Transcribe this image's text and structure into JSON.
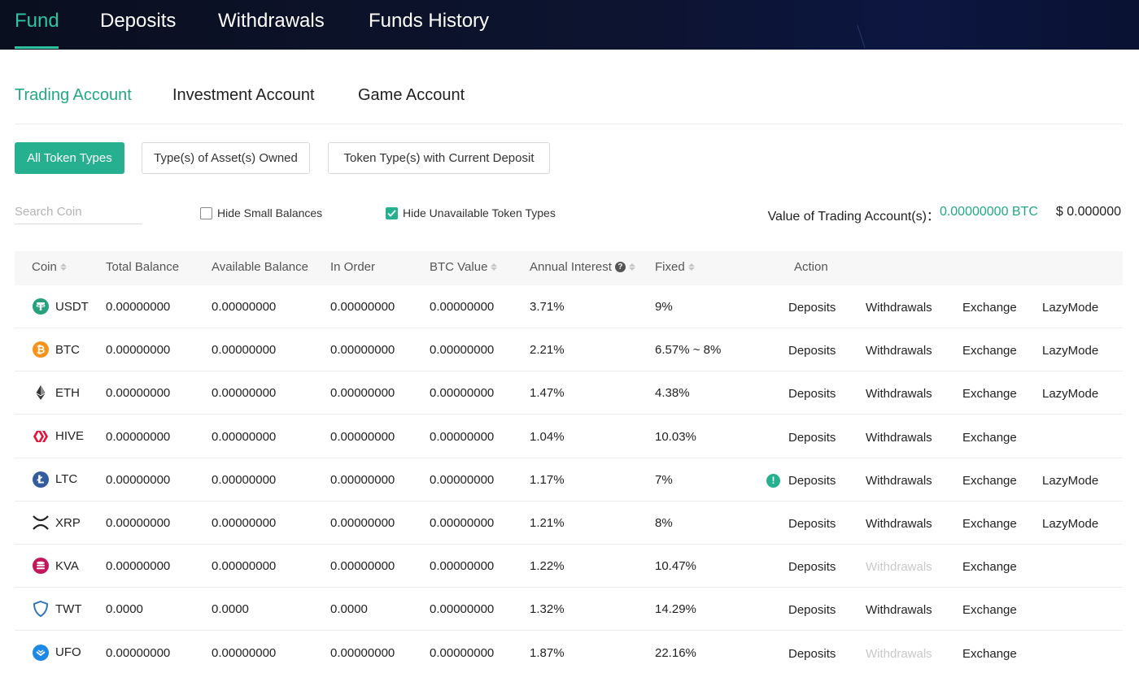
{
  "topnav": {
    "items": [
      {
        "label": "Fund",
        "active": true
      },
      {
        "label": "Deposits",
        "active": false
      },
      {
        "label": "Withdrawals",
        "active": false
      },
      {
        "label": "Funds History",
        "active": false
      }
    ]
  },
  "account_tabs": [
    {
      "label": "Trading Account",
      "active": true
    },
    {
      "label": "Investment Account",
      "active": false
    },
    {
      "label": "Game Account",
      "active": false
    }
  ],
  "filters": [
    {
      "label": "All Token Types",
      "selected": true
    },
    {
      "label": "Type(s) of Asset(s) Owned",
      "selected": false
    },
    {
      "label": "Token Type(s) with Current Deposit",
      "selected": false
    }
  ],
  "search": {
    "placeholder": "Search Coin",
    "value": ""
  },
  "checks": {
    "hide_small": {
      "label": "Hide Small Balances",
      "checked": false
    },
    "hide_unavailable": {
      "label": "Hide Unavailable Token Types",
      "checked": true
    }
  },
  "account_value": {
    "label": "Value of Trading Account(s)：",
    "btc": "0.00000000 BTC",
    "usd": "$ 0.000000"
  },
  "table": {
    "headers": {
      "coin": "Coin",
      "total": "Total Balance",
      "available": "Available Balance",
      "in_order": "In Order",
      "btc_value": "BTC Value",
      "interest": "Annual Interest",
      "fixed": "Fixed",
      "action": "Action"
    },
    "actions": {
      "deposits": "Deposits",
      "withdrawals": "Withdrawals",
      "exchange": "Exchange",
      "lazymode": "LazyMode"
    },
    "rows": [
      {
        "coin": "USDT",
        "icon": "usdt-icon",
        "total": "0.00000000",
        "available": "0.00000000",
        "in_order": "0.00000000",
        "btc_value": "0.00000000",
        "interest": "3.71%",
        "fixed": "9%",
        "warning": false,
        "withdraw_enabled": true,
        "lazymode": true
      },
      {
        "coin": "BTC",
        "icon": "btc-icon",
        "total": "0.00000000",
        "available": "0.00000000",
        "in_order": "0.00000000",
        "btc_value": "0.00000000",
        "interest": "2.21%",
        "fixed": "6.57% ~ 8%",
        "warning": false,
        "withdraw_enabled": true,
        "lazymode": true
      },
      {
        "coin": "ETH",
        "icon": "eth-icon",
        "total": "0.00000000",
        "available": "0.00000000",
        "in_order": "0.00000000",
        "btc_value": "0.00000000",
        "interest": "1.47%",
        "fixed": "4.38%",
        "warning": false,
        "withdraw_enabled": true,
        "lazymode": true
      },
      {
        "coin": "HIVE",
        "icon": "hive-icon",
        "total": "0.00000000",
        "available": "0.00000000",
        "in_order": "0.00000000",
        "btc_value": "0.00000000",
        "interest": "1.04%",
        "fixed": "10.03%",
        "warning": false,
        "withdraw_enabled": true,
        "lazymode": false
      },
      {
        "coin": "LTC",
        "icon": "ltc-icon",
        "total": "0.00000000",
        "available": "0.00000000",
        "in_order": "0.00000000",
        "btc_value": "0.00000000",
        "interest": "1.17%",
        "fixed": "7%",
        "warning": true,
        "withdraw_enabled": true,
        "lazymode": true
      },
      {
        "coin": "XRP",
        "icon": "xrp-icon",
        "total": "0.00000000",
        "available": "0.00000000",
        "in_order": "0.00000000",
        "btc_value": "0.00000000",
        "interest": "1.21%",
        "fixed": "8%",
        "warning": false,
        "withdraw_enabled": true,
        "lazymode": true
      },
      {
        "coin": "KVA",
        "icon": "kva-icon",
        "total": "0.00000000",
        "available": "0.00000000",
        "in_order": "0.00000000",
        "btc_value": "0.00000000",
        "interest": "1.22%",
        "fixed": "10.47%",
        "warning": false,
        "withdraw_enabled": false,
        "lazymode": false
      },
      {
        "coin": "TWT",
        "icon": "twt-icon",
        "total": "0.0000",
        "available": "0.0000",
        "in_order": "0.0000",
        "btc_value": "0.00000000",
        "interest": "1.32%",
        "fixed": "14.29%",
        "warning": false,
        "withdraw_enabled": true,
        "lazymode": false
      },
      {
        "coin": "UFO",
        "icon": "ufo-icon",
        "total": "0.00000000",
        "available": "0.00000000",
        "in_order": "0.00000000",
        "btc_value": "0.00000000",
        "interest": "1.87%",
        "fixed": "22.16%",
        "warning": false,
        "withdraw_enabled": false,
        "lazymode": false
      }
    ]
  },
  "colors": {
    "accent": "#26b08f",
    "nav_bg": "#0d1430",
    "disabled": "#c9c9c9"
  }
}
